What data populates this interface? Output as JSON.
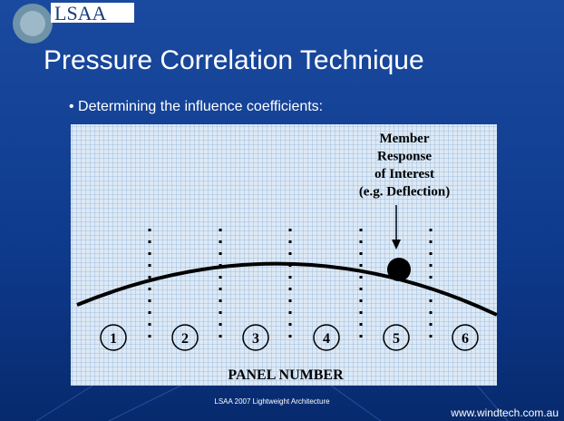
{
  "header": {
    "logo": "LSAA",
    "title": "Pressure Correlation Technique"
  },
  "bullet": "• Determining the influence coefficients:",
  "diagram": {
    "annotation": [
      "Member",
      "Response",
      "of Interest",
      "(e.g. Deflection)"
    ],
    "panels": [
      "1",
      "2",
      "3",
      "4",
      "5",
      "6"
    ],
    "axis_label": "PANEL NUMBER"
  },
  "footer": {
    "center": "LSAA 2007 Lightweight Architecture",
    "right": "www.windtech.com.au"
  }
}
